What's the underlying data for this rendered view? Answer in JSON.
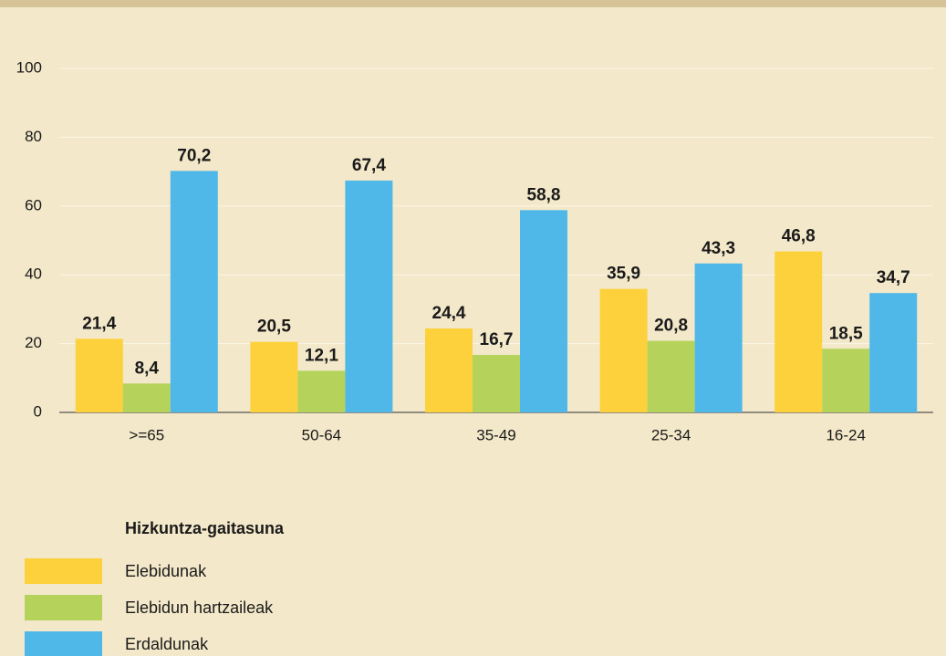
{
  "chart_data": {
    "type": "bar",
    "categories": [
      ">=65",
      "50-64",
      "35-49",
      "25-34",
      "16-24"
    ],
    "series": [
      {
        "name": "Elebidunak",
        "color": "#fdd13b",
        "values": [
          21.4,
          20.5,
          24.4,
          35.9,
          46.8
        ],
        "value_labels": [
          "21,4",
          "20,5",
          "24,4",
          "35,9",
          "46,8"
        ]
      },
      {
        "name": "Elebidun hartzaileak",
        "color": "#b5d35b",
        "values": [
          8.4,
          12.1,
          16.7,
          20.8,
          18.5
        ],
        "value_labels": [
          "8,4",
          "12,1",
          "16,7",
          "20,8",
          "18,5"
        ]
      },
      {
        "name": "Erdaldunak",
        "color": "#4fb8e8",
        "values": [
          70.2,
          67.4,
          58.8,
          43.3,
          34.7
        ],
        "value_labels": [
          "70,2",
          "67,4",
          "58,8",
          "43,3",
          "34,7"
        ]
      }
    ],
    "legend_title": "Hizkuntza-gaitasuna",
    "ylim": [
      0,
      100
    ],
    "yticks": [
      0,
      20,
      40,
      60,
      80,
      100
    ],
    "grid": true
  }
}
